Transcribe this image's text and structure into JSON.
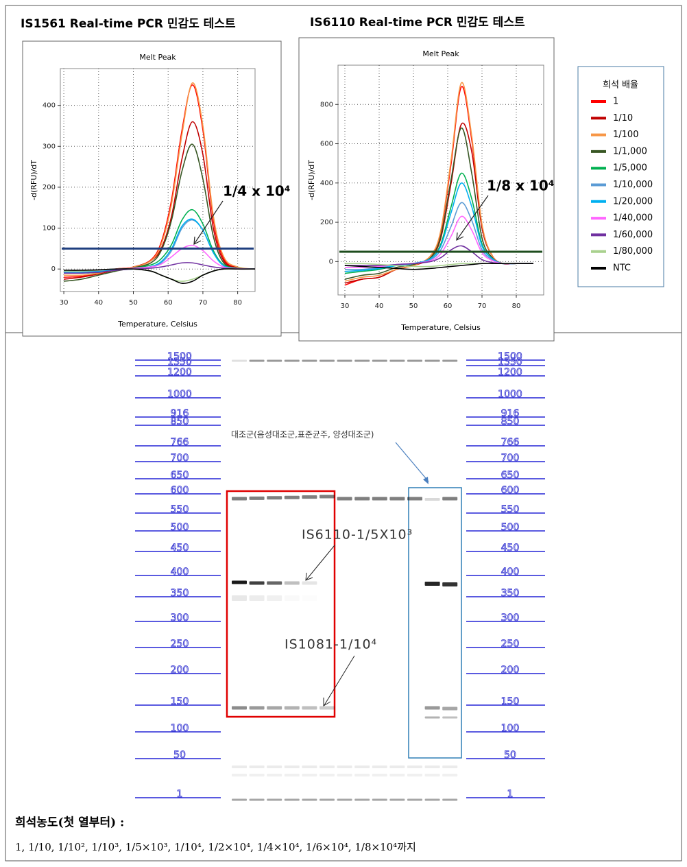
{
  "chart_data": [
    {
      "type": "line",
      "title": "IS1561 Real-time PCR 민감도 테스트",
      "plot_title": "Melt Peak",
      "x_label": "Temperature, Celsius",
      "y_label": "-d(RFU)/dT",
      "xlim": [
        29,
        85
      ],
      "xticks": [
        30,
        40,
        50,
        60,
        70,
        80
      ],
      "ylim": [
        -55,
        490
      ],
      "yticks": [
        0,
        100,
        200,
        300,
        400
      ],
      "grid": true,
      "threshold": 50,
      "threshold_color": "#1f3f7f",
      "annotation": "1/4 x 10⁴",
      "x": [
        30,
        35,
        40,
        45,
        50,
        55,
        58,
        61,
        64,
        67,
        70,
        73,
        76,
        80,
        85
      ],
      "series": [
        {
          "name": "1",
          "color": "#ff0000",
          "values": [
            -20,
            -18,
            -10,
            0,
            5,
            22,
            65,
            170,
            340,
            450,
            340,
            120,
            25,
            3,
            0
          ]
        },
        {
          "name": "1/10",
          "color": "#c00000",
          "values": [
            -25,
            -20,
            -12,
            -2,
            5,
            20,
            50,
            130,
            270,
            360,
            280,
            100,
            20,
            3,
            0
          ]
        },
        {
          "name": "1/100",
          "color": "#f79646",
          "values": [
            -15,
            -15,
            -10,
            0,
            5,
            20,
            60,
            160,
            330,
            455,
            350,
            130,
            30,
            5,
            0
          ]
        },
        {
          "name": "1/1,000",
          "color": "#375623",
          "values": [
            -30,
            -25,
            -15,
            -5,
            3,
            15,
            45,
            120,
            240,
            305,
            220,
            80,
            15,
            2,
            0
          ]
        },
        {
          "name": "1/5,000",
          "color": "#00b050",
          "values": [
            -10,
            -10,
            -8,
            -2,
            2,
            10,
            25,
            60,
            120,
            145,
            110,
            45,
            10,
            2,
            0
          ]
        },
        {
          "name": "1/10,000",
          "color": "#5b9bd5",
          "values": [
            -5,
            -5,
            -5,
            -2,
            0,
            5,
            15,
            45,
            100,
            120,
            95,
            40,
            8,
            1,
            0
          ]
        },
        {
          "name": "1/20,000",
          "color": "#00b0f0",
          "values": [
            -8,
            -8,
            -6,
            -2,
            0,
            6,
            18,
            50,
            105,
            122,
            95,
            40,
            8,
            1,
            0
          ]
        },
        {
          "name": "1/40,000",
          "color": "#ff66ff",
          "values": [
            -5,
            -5,
            -3,
            0,
            2,
            5,
            12,
            30,
            50,
            58,
            45,
            20,
            5,
            1,
            0
          ]
        },
        {
          "name": "1/60,000",
          "color": "#7030a0",
          "values": [
            -10,
            -10,
            -8,
            -3,
            0,
            2,
            5,
            10,
            15,
            15,
            10,
            5,
            2,
            0,
            0
          ]
        },
        {
          "name": "1/80,000",
          "color": "#a9d18e",
          "values": [
            -5,
            -5,
            -3,
            0,
            0,
            -5,
            -15,
            -25,
            -30,
            -25,
            -15,
            -5,
            0,
            0,
            0
          ]
        },
        {
          "name": "NTC",
          "color": "#000000",
          "values": [
            -3,
            -3,
            -2,
            0,
            0,
            -5,
            -15,
            -25,
            -35,
            -30,
            -15,
            -5,
            0,
            0,
            0
          ]
        }
      ]
    },
    {
      "type": "line",
      "title": "IS6110 Real-time PCR 민감도 테스트",
      "plot_title": "Melt Peak",
      "x_label": "Temperature, Celsius",
      "y_label": "-d(RFU)/dT",
      "xlim": [
        28,
        88
      ],
      "xticks": [
        30,
        40,
        50,
        60,
        70,
        80
      ],
      "ylim": [
        -170,
        1000
      ],
      "yticks": [
        0,
        200,
        400,
        600,
        800
      ],
      "grid": true,
      "threshold": 50,
      "threshold_color": "#1e4d1e",
      "annotation": "1/8 x 10⁴",
      "x": [
        30,
        35,
        40,
        45,
        50,
        55,
        58,
        61,
        64,
        67,
        70,
        73,
        76,
        80,
        85
      ],
      "series": [
        {
          "name": "1",
          "color": "#ff0000",
          "values": [
            -120,
            -90,
            -80,
            -40,
            -20,
            20,
            150,
            500,
            890,
            620,
            180,
            30,
            -10,
            -10,
            -10
          ]
        },
        {
          "name": "1/10",
          "color": "#c00000",
          "values": [
            -110,
            -90,
            -80,
            -40,
            -20,
            20,
            120,
            400,
            700,
            560,
            170,
            30,
            -10,
            -10,
            -10
          ]
        },
        {
          "name": "1/100",
          "color": "#f79646",
          "values": [
            -100,
            -80,
            -70,
            -40,
            -20,
            30,
            160,
            520,
            910,
            640,
            190,
            30,
            -10,
            -10,
            -10
          ]
        },
        {
          "name": "1/1,000",
          "color": "#375623",
          "values": [
            -90,
            -70,
            -60,
            -30,
            -15,
            20,
            130,
            420,
            680,
            450,
            120,
            20,
            -10,
            -10,
            -10
          ]
        },
        {
          "name": "1/5,000",
          "color": "#00b050",
          "values": [
            -60,
            -50,
            -40,
            -20,
            -10,
            15,
            90,
            280,
            450,
            320,
            90,
            15,
            -10,
            -10,
            -10
          ]
        },
        {
          "name": "1/10,000",
          "color": "#5b9bd5",
          "values": [
            -40,
            -40,
            -30,
            -15,
            -10,
            10,
            60,
            180,
            300,
            210,
            60,
            10,
            -10,
            -10,
            -10
          ]
        },
        {
          "name": "1/20,000",
          "color": "#00b0f0",
          "values": [
            -50,
            -45,
            -35,
            -20,
            -10,
            15,
            80,
            250,
            400,
            280,
            80,
            15,
            -10,
            -10,
            -10
          ]
        },
        {
          "name": "1/40,000",
          "color": "#ff66ff",
          "values": [
            -30,
            -30,
            -25,
            -15,
            -10,
            5,
            40,
            130,
            230,
            160,
            45,
            5,
            -10,
            -10,
            -10
          ]
        },
        {
          "name": "1/60,000",
          "color": "#7030a0",
          "values": [
            -20,
            -20,
            -20,
            -15,
            -10,
            0,
            20,
            60,
            80,
            50,
            10,
            -5,
            -10,
            -10,
            -10
          ]
        },
        {
          "name": "1/80,000",
          "color": "#a9d18e",
          "values": [
            -10,
            -10,
            -15,
            -20,
            -25,
            -25,
            -20,
            -15,
            -10,
            -10,
            -10,
            -10,
            -10,
            -10,
            -10
          ]
        },
        {
          "name": "NTC",
          "color": "#000000",
          "values": [
            -20,
            -25,
            -30,
            -35,
            -40,
            -35,
            -30,
            -25,
            -20,
            -15,
            -10,
            -10,
            -10,
            -10,
            -10
          ]
        }
      ]
    }
  ],
  "legend": {
    "title": "희석 배율"
  },
  "gel": {
    "ladder": [
      1500,
      1350,
      1200,
      1000,
      916,
      850,
      766,
      700,
      650,
      600,
      550,
      500,
      450,
      400,
      350,
      300,
      250,
      200,
      150,
      100,
      50,
      1
    ],
    "control_label": "대조군(음성대조군,표준균주, 양성대조군)",
    "is6110_label": "IS6110-1/5X10³",
    "is1081_label": "IS1081-1/10⁴"
  },
  "caption": {
    "label": "희석농도(첫 열부터) :",
    "text": "1, 1/10, 1/10², 1/10³, 1/5×10³, 1/10⁴, 1/2×10⁴, 1/4×10⁴, 1/6×10⁴, 1/8×10⁴까지"
  }
}
